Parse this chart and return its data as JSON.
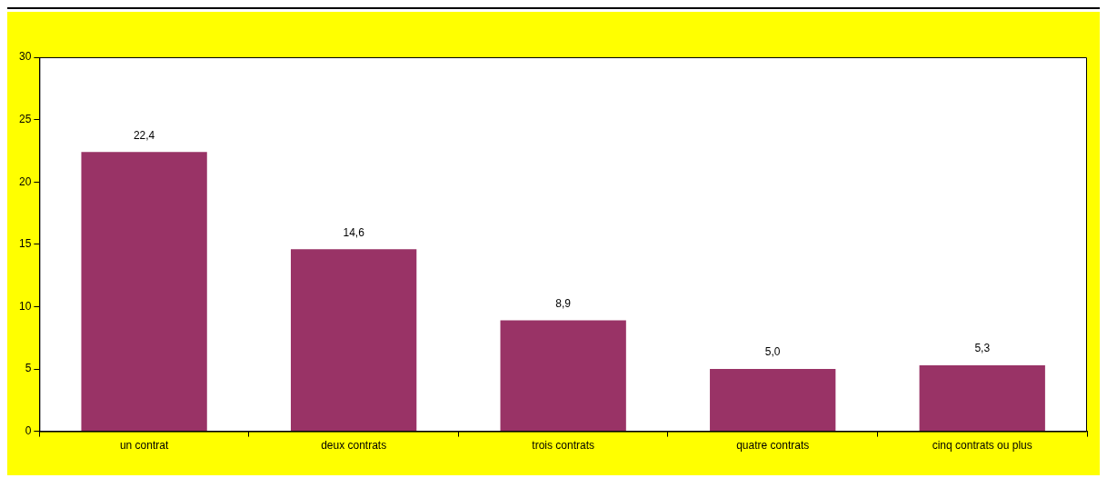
{
  "chart_data": {
    "type": "bar",
    "categories": [
      "un contrat",
      "deux contrats",
      "trois contrats",
      "quatre contrats",
      "cinq contrats ou plus"
    ],
    "values": [
      22.4,
      14.6,
      8.9,
      5.0,
      5.3
    ],
    "value_labels": [
      "22,4",
      "14,6",
      "8,9",
      "5,0",
      "5,3"
    ],
    "color": "#993366",
    "ylim": [
      0,
      30
    ],
    "yticks": [
      0,
      5,
      10,
      15,
      20,
      25,
      30
    ],
    "grid": false,
    "legend": false
  }
}
